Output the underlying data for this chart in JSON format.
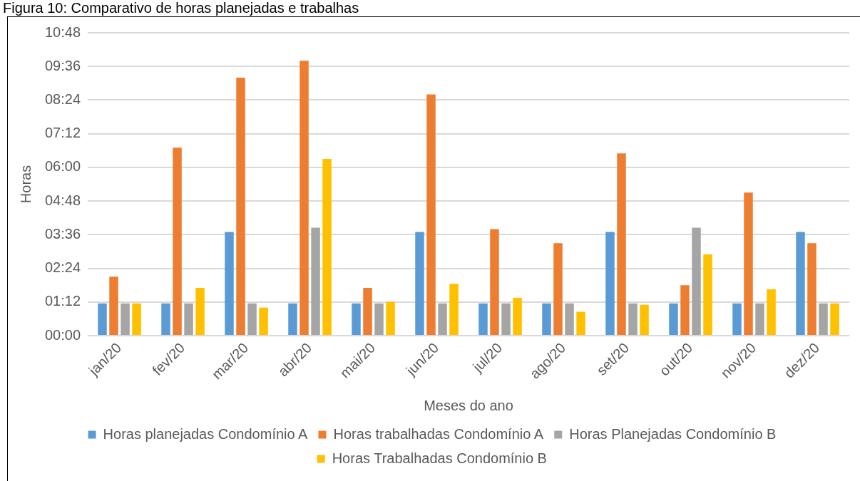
{
  "chart_data": {
    "type": "bar",
    "title": "Figura 10: Comparativo de horas planejadas e trabalhas",
    "xlabel": "Meses do ano",
    "ylabel": "Horas",
    "categories": [
      "jan/20",
      "fev/20",
      "mar/20",
      "abr/20",
      "mai/20",
      "jun/20",
      "jul/20",
      "ago/20",
      "set/20",
      "out/20",
      "nov/20",
      "dez/20"
    ],
    "series": [
      {
        "name": "Horas planejadas Condomínio A",
        "color": "#5b9bd5",
        "values": [
          1.15,
          1.15,
          3.7,
          1.15,
          1.15,
          3.7,
          1.15,
          1.15,
          3.7,
          1.15,
          1.15,
          3.7
        ]
      },
      {
        "name": "Horas trabalhadas Condomínio A",
        "color": "#ed7d31",
        "values": [
          2.1,
          6.7,
          9.2,
          9.8,
          1.7,
          8.6,
          3.8,
          3.3,
          6.5,
          1.8,
          5.1,
          3.3
        ]
      },
      {
        "name": "Horas Planejadas Condomínio B",
        "color": "#a5a5a5",
        "values": [
          1.15,
          1.15,
          1.15,
          3.85,
          1.15,
          1.15,
          1.15,
          1.15,
          1.15,
          3.85,
          1.15,
          1.15
        ]
      },
      {
        "name": "Horas Trabalhadas Condomínio B",
        "color": "#ffc000",
        "values": [
          1.15,
          1.7,
          1.0,
          6.3,
          1.2,
          1.85,
          1.35,
          0.85,
          1.1,
          2.9,
          1.65,
          1.15
        ]
      }
    ],
    "ylim": [
      0,
      10.8
    ],
    "yticks": [
      {
        "value": 0,
        "label": "00:00"
      },
      {
        "value": 1.2,
        "label": "01:12"
      },
      {
        "value": 2.4,
        "label": "02:24"
      },
      {
        "value": 3.6,
        "label": "03:36"
      },
      {
        "value": 4.8,
        "label": "04:48"
      },
      {
        "value": 6,
        "label": "06:00"
      },
      {
        "value": 7.2,
        "label": "07:12"
      },
      {
        "value": 8.4,
        "label": "08:24"
      },
      {
        "value": 9.6,
        "label": "09:36"
      },
      {
        "value": 10.8,
        "label": "10:48"
      }
    ],
    "grid": "y",
    "legend": "bottom"
  }
}
